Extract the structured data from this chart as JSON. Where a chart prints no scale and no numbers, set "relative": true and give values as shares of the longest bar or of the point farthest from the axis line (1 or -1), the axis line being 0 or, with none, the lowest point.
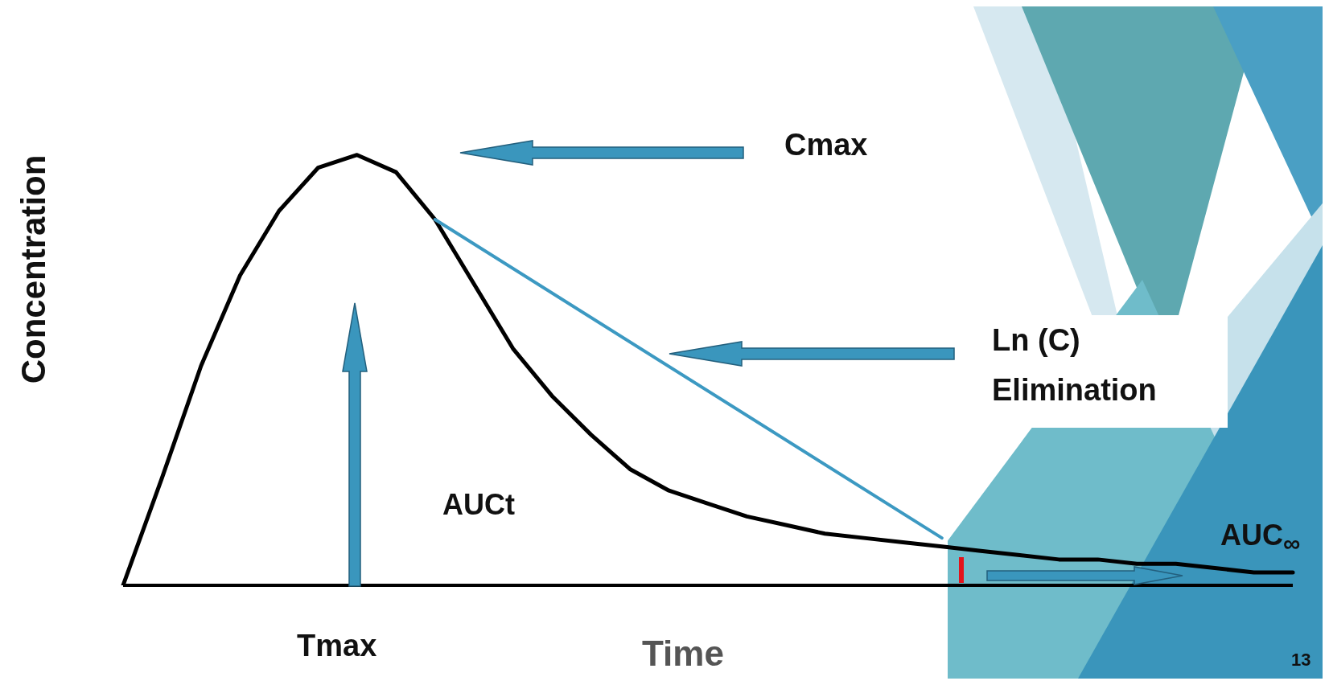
{
  "chart_data": {
    "type": "line",
    "relative": true,
    "xlabel": "Time",
    "ylabel": "Concentration",
    "grid": false,
    "marker": "none",
    "line_style": "solid",
    "categories": [
      null,
      null,
      null,
      null,
      null,
      null,
      null,
      null,
      null,
      null,
      null,
      null,
      null,
      null,
      null,
      null,
      null,
      null,
      null,
      null,
      null,
      null,
      null,
      null,
      null,
      null,
      null,
      null,
      null,
      null,
      null
    ],
    "series": [
      {
        "color": "#000000",
        "values": [
          0,
          0.25,
          0.51,
          0.72,
          0.87,
          0.97,
          1,
          0.96,
          0.85,
          0.7,
          0.55,
          0.44,
          0.35,
          0.27,
          0.22,
          0.19,
          0.16,
          0.14,
          0.12,
          0.11,
          0.1,
          0.09,
          0.08,
          0.07,
          0.06,
          0.06,
          0.05,
          0.05,
          0.04,
          0.03,
          0.03
        ]
      },
      {
        "color": "#3c99c2",
        "values": [
          null,
          null,
          null,
          null,
          null,
          null,
          null,
          null,
          0.85,
          null,
          null,
          null,
          null,
          null,
          null,
          null,
          null,
          null,
          null,
          null,
          null,
          0.11,
          null,
          null,
          null,
          null,
          null,
          null,
          null,
          null,
          null
        ]
      }
    ],
    "annotations": [
      "Cmax",
      "Ln (C)",
      "Elimination",
      "AUCt",
      "AUC$_{∞}$",
      "Tmax",
      "13"
    ]
  }
}
